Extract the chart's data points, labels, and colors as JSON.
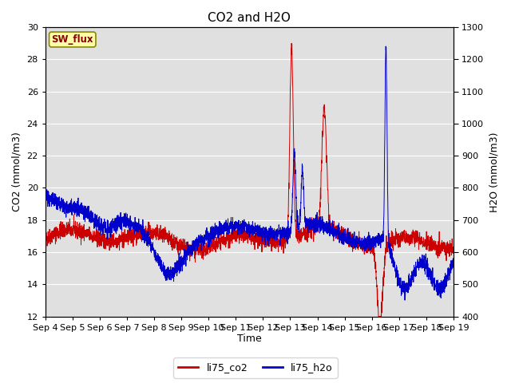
{
  "title": "CO2 and H2O",
  "xlabel": "Time",
  "ylabel_left": "CO2 (mmol/m3)",
  "ylabel_right": "H2O (mmol/m3)",
  "ylim_left": [
    12,
    30
  ],
  "ylim_right": [
    400,
    1300
  ],
  "yticks_left": [
    12,
    14,
    16,
    18,
    20,
    22,
    24,
    26,
    28,
    30
  ],
  "yticks_right": [
    400,
    500,
    600,
    700,
    800,
    900,
    1000,
    1100,
    1200,
    1300
  ],
  "xtick_labels": [
    "Sep 4",
    "Sep 5",
    "Sep 6",
    "Sep 7",
    "Sep 8",
    "Sep 9",
    "Sep 10",
    "Sep 11",
    "Sep 12",
    "Sep 13",
    "Sep 14",
    "Sep 15",
    "Sep 16",
    "Sep 17",
    "Sep 18",
    "Sep 19"
  ],
  "color_co2": "#cc0000",
  "color_h2o": "#0000cc",
  "legend_labels": [
    "li75_co2",
    "li75_h2o"
  ],
  "sw_flux_label": "SW_flux",
  "background_color": "#e0e0e0",
  "grid_color": "#ffffff",
  "title_fontsize": 11,
  "axis_fontsize": 9,
  "tick_fontsize": 8
}
